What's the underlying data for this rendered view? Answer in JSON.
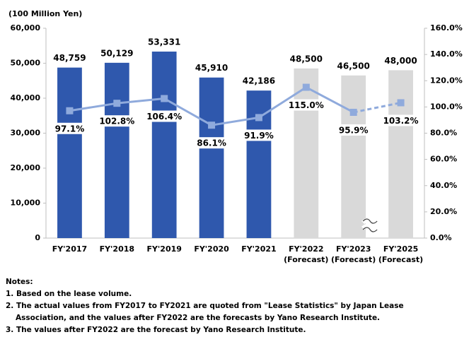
{
  "chart_data": {
    "type": "bar_line",
    "y_axis_label": "(100 Million Yen)",
    "categories": [
      "FY'2017",
      "FY'2018",
      "FY'2019",
      "FY'2020",
      "FY'2021",
      "FY'2022\n(Forecast)",
      "FY'2023\n(Forecast)",
      "FY'2025\n(Forecast)"
    ],
    "series": [
      {
        "type": "bar",
        "values": [
          48759,
          50129,
          53331,
          45910,
          42186,
          48500,
          46500,
          48000
        ],
        "value_labels": [
          "48,759",
          "50,129",
          "53,331",
          "45,910",
          "42,186",
          "48,500",
          "46,500",
          "48,000"
        ],
        "colors": [
          "#2f58ad",
          "#2f58ad",
          "#2f58ad",
          "#2f58ad",
          "#2f58ad",
          "#d9d9d9",
          "#d9d9d9",
          "#d9d9d9"
        ]
      },
      {
        "type": "line",
        "axis": "y2",
        "color": "#8faadc",
        "values": [
          97.1,
          102.8,
          106.4,
          86.1,
          91.9,
          115.0,
          95.9,
          103.2
        ],
        "value_labels": [
          "97.1%",
          "102.8%",
          "106.4%",
          "86.1%",
          "91.9%",
          "115.0%",
          "95.9%",
          "103.2%"
        ],
        "segment_dashed": [
          false,
          false,
          false,
          false,
          false,
          false,
          true
        ]
      }
    ],
    "ylim": [
      0,
      60000
    ],
    "yticks": [
      0,
      {
        "value": 10000,
        "label": "10,000"
      },
      {
        "value": 20000,
        "label": "20,000"
      },
      {
        "value": 30000,
        "label": "30,000"
      },
      {
        "value": 40000,
        "label": "40,000"
      },
      {
        "value": 50000,
        "label": "50,000"
      },
      {
        "value": 60000,
        "label": "60,000"
      }
    ],
    "y2lim": [
      0,
      160
    ],
    "y2ticks": [
      {
        "value": 0,
        "label": "0.0%"
      },
      {
        "value": 20,
        "label": "20.0%"
      },
      {
        "value": 40,
        "label": "40.0%"
      },
      {
        "value": 60,
        "label": "60.0%"
      },
      {
        "value": 80,
        "label": "80.0%"
      },
      {
        "value": 100,
        "label": "100.0%"
      },
      {
        "value": 120,
        "label": "120.0%"
      },
      {
        "value": 140,
        "label": "140.0%"
      },
      {
        "value": 160,
        "label": "160.0%"
      }
    ]
  },
  "notes": {
    "title": "Notes:",
    "items": [
      [
        "1. Based on the lease volume."
      ],
      [
        "2. The actual values from FY2017 to FY2021 are quoted from \"Lease Statistics\" by Japan Lease",
        "Association, and the values after FY2022 are the forecasts by Yano Research Institute."
      ],
      [
        "3. The values after FY2022 are the forecast by Yano Research Institute."
      ]
    ]
  }
}
